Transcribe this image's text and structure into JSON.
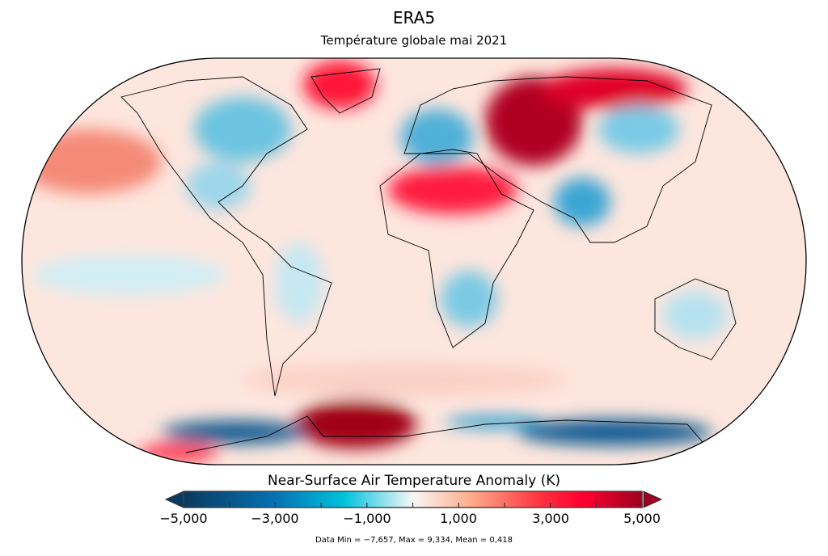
{
  "title": "ERA5",
  "subtitle": "Température globale mai 2021",
  "colorbar": {
    "label": "Near-Surface Air Temperature Anomaly (K)",
    "min": -5,
    "max": 5,
    "tick_labels": [
      "−5,000",
      "−3,000",
      "−1,000",
      "1,000",
      "3,000",
      "5,000"
    ],
    "tick_values": [
      -5,
      -3,
      -1,
      1,
      3,
      5
    ],
    "extend": "both",
    "colors": {
      "low_end": "#0a3a5e",
      "blue": "#0672b3",
      "cyan": "#00c2dc",
      "neutral": "#f7f7f7",
      "salmon": "#ffaa88",
      "red": "#ff0030",
      "high_end": "#9e0020"
    }
  },
  "stats": "Data Min = −7,657, Max = 9,334, Mean = 0,418",
  "map": {
    "projection": "Robinson",
    "coastlines": true
  }
}
